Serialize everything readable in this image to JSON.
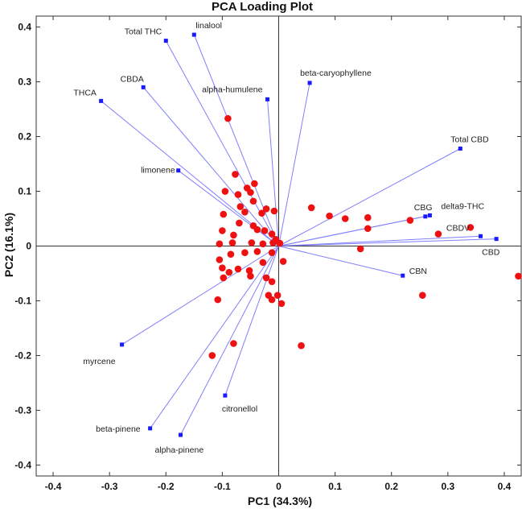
{
  "chart_data": {
    "type": "scatter",
    "title": "PCA Loading Plot",
    "xlabel": "PC1 (34.3%)",
    "ylabel": "PC2 (16.1%)",
    "xlim": [
      -0.43,
      0.43
    ],
    "ylim": [
      -0.42,
      0.42
    ],
    "xticks": [
      -0.4,
      -0.3,
      -0.2,
      -0.1,
      0,
      0.1,
      0.2,
      0.3,
      0.4
    ],
    "yticks": [
      -0.4,
      -0.3,
      -0.2,
      -0.1,
      0,
      0.1,
      0.2,
      0.3,
      0.4
    ],
    "xtick_labels": [
      "-0.4",
      "-0.3",
      "-0.2",
      "-0.1",
      "0",
      "0.1",
      "0.2",
      "0.3",
      "0.4"
    ],
    "ytick_labels": [
      "-0.4",
      "-0.3",
      "-0.2",
      "-0.1",
      "0",
      "0.1",
      "0.2",
      "0.3",
      "0.4"
    ],
    "grid": false,
    "reference_lines": {
      "x": 0,
      "y": 0
    },
    "loadings": [
      {
        "name": "Total THC",
        "x": -0.2,
        "y": 0.375
      },
      {
        "name": "linalool",
        "x": -0.15,
        "y": 0.386
      },
      {
        "name": "CBDA",
        "x": -0.24,
        "y": 0.29
      },
      {
        "name": "THCA",
        "x": -0.315,
        "y": 0.265
      },
      {
        "name": "alpha-humulene",
        "x": -0.02,
        "y": 0.268
      },
      {
        "name": "beta-caryophyllene",
        "x": 0.055,
        "y": 0.298
      },
      {
        "name": "Total CBD",
        "x": 0.322,
        "y": 0.178
      },
      {
        "name": "limonene",
        "x": -0.178,
        "y": 0.138
      },
      {
        "name": "CBG",
        "x": 0.26,
        "y": 0.054
      },
      {
        "name": "delta9-THC",
        "x": 0.268,
        "y": 0.056
      },
      {
        "name": "CBDV",
        "x": 0.358,
        "y": 0.018
      },
      {
        "name": "CBD",
        "x": 0.386,
        "y": 0.013
      },
      {
        "name": "CBN",
        "x": 0.22,
        "y": -0.054
      },
      {
        "name": "myrcene",
        "x": -0.278,
        "y": -0.18
      },
      {
        "name": "citronellol",
        "x": -0.095,
        "y": -0.273
      },
      {
        "name": "beta-pinene",
        "x": -0.228,
        "y": -0.333
      },
      {
        "name": "alpha-pinene",
        "x": -0.174,
        "y": -0.345
      }
    ],
    "scores": [
      [
        -0.09,
        0.233
      ],
      [
        -0.077,
        0.131
      ],
      [
        -0.056,
        0.106
      ],
      [
        -0.043,
        0.114
      ],
      [
        -0.05,
        0.098
      ],
      [
        -0.095,
        0.1
      ],
      [
        -0.072,
        0.094
      ],
      [
        -0.045,
        0.082
      ],
      [
        -0.068,
        0.072
      ],
      [
        -0.06,
        0.062
      ],
      [
        -0.098,
        0.058
      ],
      [
        -0.03,
        0.06
      ],
      [
        -0.022,
        0.068
      ],
      [
        -0.07,
        0.042
      ],
      [
        -0.045,
        0.037
      ],
      [
        -0.038,
        0.03
      ],
      [
        -0.008,
        0.064
      ],
      [
        -0.1,
        0.028
      ],
      [
        -0.08,
        0.02
      ],
      [
        -0.025,
        0.028
      ],
      [
        -0.012,
        0.022
      ],
      [
        -0.005,
        0.012
      ],
      [
        0.002,
        0.005
      ],
      [
        -0.105,
        0.004
      ],
      [
        -0.082,
        0.006
      ],
      [
        -0.048,
        0.006
      ],
      [
        -0.028,
        0.004
      ],
      [
        -0.01,
        0.006
      ],
      [
        -0.012,
        -0.012
      ],
      [
        -0.085,
        -0.015
      ],
      [
        -0.06,
        -0.012
      ],
      [
        -0.038,
        -0.01
      ],
      [
        -0.105,
        -0.025
      ],
      [
        -0.028,
        -0.03
      ],
      [
        0.008,
        -0.028
      ],
      [
        -0.1,
        -0.04
      ],
      [
        -0.088,
        -0.048
      ],
      [
        -0.072,
        -0.042
      ],
      [
        -0.052,
        -0.045
      ],
      [
        -0.05,
        -0.055
      ],
      [
        -0.022,
        -0.058
      ],
      [
        -0.012,
        -0.065
      ],
      [
        -0.098,
        -0.058
      ],
      [
        -0.018,
        -0.09
      ],
      [
        -0.012,
        -0.098
      ],
      [
        -0.002,
        -0.09
      ],
      [
        0.005,
        -0.105
      ],
      [
        -0.108,
        -0.098
      ],
      [
        0.04,
        -0.182
      ],
      [
        -0.08,
        -0.178
      ],
      [
        -0.118,
        -0.2
      ],
      [
        0.058,
        0.07
      ],
      [
        0.09,
        0.055
      ],
      [
        0.118,
        0.05
      ],
      [
        0.158,
        0.052
      ],
      [
        0.158,
        0.032
      ],
      [
        0.145,
        -0.005
      ],
      [
        0.233,
        0.047
      ],
      [
        0.283,
        0.022
      ],
      [
        0.34,
        0.034
      ],
      [
        0.255,
        -0.09
      ],
      [
        0.425,
        -0.055
      ]
    ],
    "colors": {
      "loading": "#1a1aff",
      "loading_line": "#7f7fff",
      "score": "#ee1111",
      "axes": "#333333"
    }
  }
}
